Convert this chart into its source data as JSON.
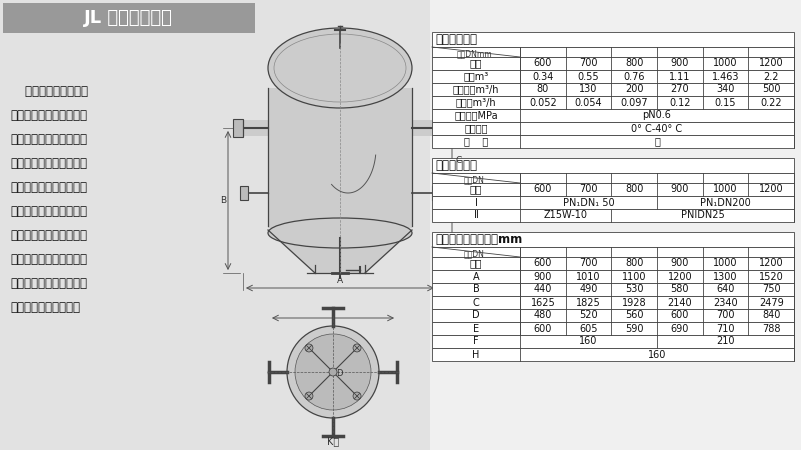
{
  "bg_color": "#d8d8d8",
  "title": "JL 型碕石过滤器",
  "description": [
    "    碕石过滤器在火力发",
    "电厂主要用来澄清和消除",
    "循环水中杂质，以保证循",
    "环系统的安全，和达到循",
    "环水回用的节约目的，所",
    "以这种设备在高寒缺水地",
    "区更显示出它的重要性，",
    "当然，矿山、冶金、建材",
    "等部门作为净化处理设备",
    "使用，也可十分合适。"
  ],
  "table1_title": "主要技术参数",
  "table1_subheader": "规格DNmm",
  "table1_col0_label": "参数",
  "table1_cols": [
    "600",
    "700",
    "800",
    "900",
    "1000",
    "1200"
  ],
  "table1_rows": [
    [
      "容积m³",
      "0.34",
      "0.55",
      "0.76",
      "1.11",
      "1.463",
      "2.2"
    ],
    [
      "滤水能力m³/h",
      "80",
      "130",
      "200",
      "270",
      "340",
      "500"
    ],
    [
      "滤石量m³/h",
      "0.052",
      "0.054",
      "0.097",
      "0.12",
      "0.15",
      "0.22"
    ],
    [
      "使用压力MPa",
      "pN0.6",
      "",
      "",
      "",
      "",
      ""
    ],
    [
      "适用温度",
      "0° C-40° C",
      "",
      "",
      "",
      "",
      ""
    ],
    [
      "介    质",
      "水",
      "",
      "",
      "",
      "",
      ""
    ]
  ],
  "table2_title": "法兰连接尺寸",
  "table2_subheader": "规格DN",
  "table2_col0_label": "代号",
  "table2_cols": [
    "600",
    "700",
    "800",
    "900",
    "1000",
    "1200"
  ],
  "table2_rows": [
    [
      "Ⅰ",
      "PN₁DN₁ 50",
      "",
      "",
      "PN₁DN200",
      "",
      ""
    ],
    [
      "Ⅱ",
      "Z15W-10",
      "",
      "PNIDN25",
      "",
      "",
      ""
    ]
  ],
  "table3_title": "主要外形尺寸连接表mm",
  "table3_subheader": "规格DN",
  "table3_col0_label": "代号",
  "table3_cols": [
    "600",
    "700",
    "800",
    "900",
    "1000",
    "1200"
  ],
  "table3_rows": [
    [
      "A",
      "900",
      "1010",
      "1100",
      "1200",
      "1300",
      "1520"
    ],
    [
      "B",
      "440",
      "490",
      "530",
      "580",
      "640",
      "750"
    ],
    [
      "C",
      "1625",
      "1825",
      "1928",
      "2140",
      "2340",
      "2479"
    ],
    [
      "D",
      "480",
      "520",
      "560",
      "600",
      "700",
      "840"
    ],
    [
      "E",
      "600",
      "605",
      "590",
      "690",
      "710",
      "788"
    ],
    [
      "F",
      "160",
      "",
      "",
      "210",
      "",
      ""
    ],
    [
      "H",
      "160",
      "",
      "",
      "",
      "",
      ""
    ]
  ]
}
